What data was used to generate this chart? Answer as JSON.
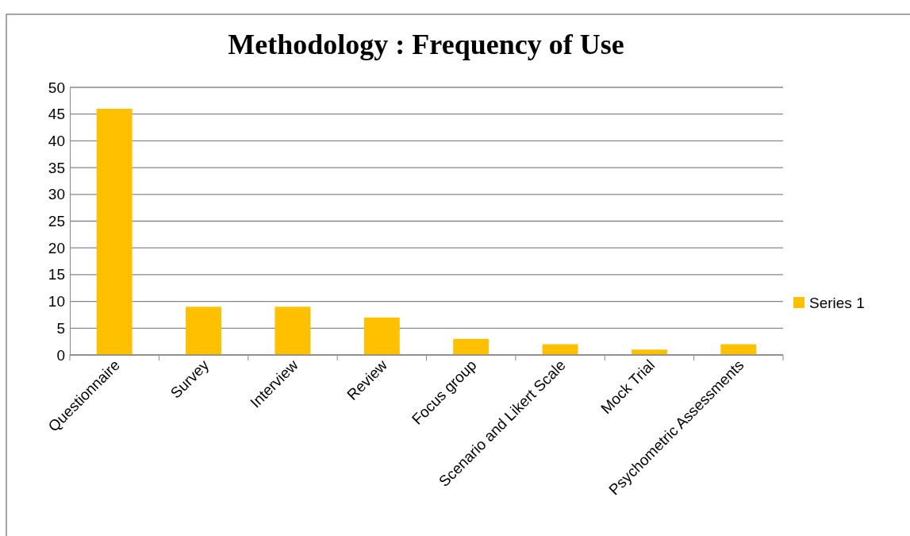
{
  "chart_data": {
    "type": "bar",
    "title": "Methodology : Frequency of Use",
    "categories": [
      "Questionnaire",
      "Survey",
      "Interview",
      "Review",
      "Focus group",
      "Scenario and Likert Scale",
      "Mock Trial",
      "Psychometric Assessments"
    ],
    "series": [
      {
        "name": "Series 1",
        "color": "#ffc000",
        "values": [
          46,
          9,
          9,
          7,
          3,
          2,
          1,
          2
        ]
      }
    ],
    "ylim": [
      0,
      50
    ],
    "yticks": [
      0,
      5,
      10,
      15,
      20,
      25,
      30,
      35,
      40,
      45,
      50
    ],
    "grid": "y",
    "legend": "right"
  }
}
